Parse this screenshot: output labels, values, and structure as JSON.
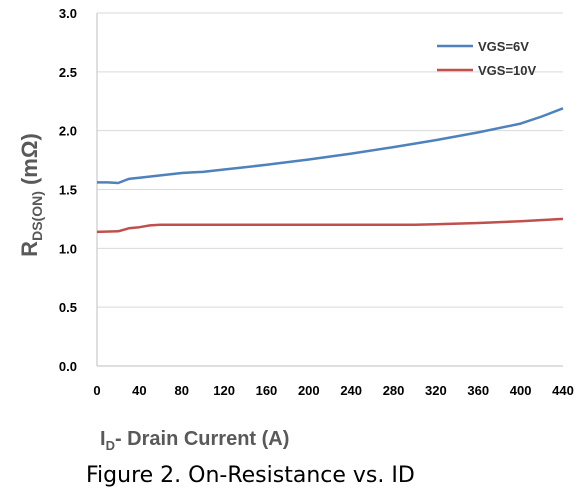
{
  "chart_data": {
    "type": "line",
    "title": "",
    "caption": "Figure 2. On-Resistance vs. ID",
    "ylabel": {
      "main": "R",
      "sub": "DS(ON)",
      "unit": " (mΩ)"
    },
    "xlabel": {
      "main": "I",
      "sub": "D",
      "rest": "- Drain Current (A)"
    },
    "ylim": [
      0,
      3
    ],
    "xlim": [
      0,
      440
    ],
    "yticks": [
      "0.0",
      "0.5",
      "1.0",
      "1.5",
      "2.0",
      "2.5",
      "3.0"
    ],
    "xticks": [
      "0",
      "40",
      "80",
      "120",
      "160",
      "200",
      "240",
      "280",
      "320",
      "360",
      "400",
      "440"
    ],
    "grid": "horizontal",
    "legend_position": "top-right",
    "series": [
      {
        "name": "VGS=6V",
        "color": "#4f81bd",
        "points": [
          [
            0,
            1.56
          ],
          [
            10,
            1.56
          ],
          [
            20,
            1.555
          ],
          [
            30,
            1.59
          ],
          [
            40,
            1.6
          ],
          [
            60,
            1.62
          ],
          [
            80,
            1.64
          ],
          [
            90,
            1.645
          ],
          [
            100,
            1.65
          ],
          [
            120,
            1.67
          ],
          [
            160,
            1.71
          ],
          [
            200,
            1.755
          ],
          [
            240,
            1.805
          ],
          [
            280,
            1.86
          ],
          [
            320,
            1.92
          ],
          [
            360,
            1.985
          ],
          [
            400,
            2.06
          ],
          [
            420,
            2.12
          ],
          [
            440,
            2.19
          ]
        ]
      },
      {
        "name": "VGS=10V",
        "color": "#c0504d",
        "points": [
          [
            0,
            1.14
          ],
          [
            20,
            1.145
          ],
          [
            30,
            1.17
          ],
          [
            40,
            1.18
          ],
          [
            50,
            1.195
          ],
          [
            60,
            1.2
          ],
          [
            80,
            1.2
          ],
          [
            120,
            1.2
          ],
          [
            200,
            1.2
          ],
          [
            280,
            1.2
          ],
          [
            300,
            1.2
          ],
          [
            320,
            1.205
          ],
          [
            360,
            1.215
          ],
          [
            400,
            1.23
          ],
          [
            440,
            1.25
          ]
        ]
      }
    ]
  }
}
